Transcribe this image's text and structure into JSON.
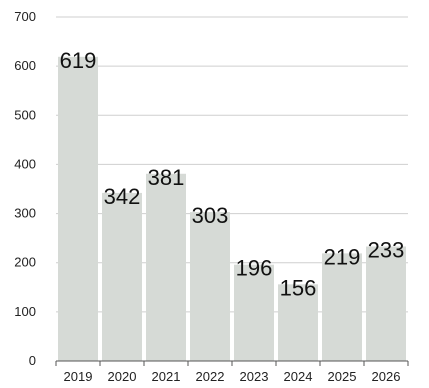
{
  "chart_data": {
    "type": "bar",
    "categories": [
      "2019",
      "2020",
      "2021",
      "2022",
      "2023",
      "2024",
      "2025",
      "2026"
    ],
    "values": [
      619,
      342,
      381,
      303,
      196,
      156,
      219,
      233
    ],
    "data_labels": [
      "619",
      "342",
      "381",
      "303",
      "196",
      "156",
      "219",
      "233"
    ],
    "y_ticks": [
      "0",
      "100",
      "200",
      "300",
      "400",
      "500",
      "600",
      "700"
    ],
    "ylim": [
      0,
      700
    ],
    "grid": true,
    "bar_color": "#d6dad6",
    "grid_color": "#cfcfcf",
    "title": "",
    "xlabel": "",
    "ylabel": ""
  }
}
